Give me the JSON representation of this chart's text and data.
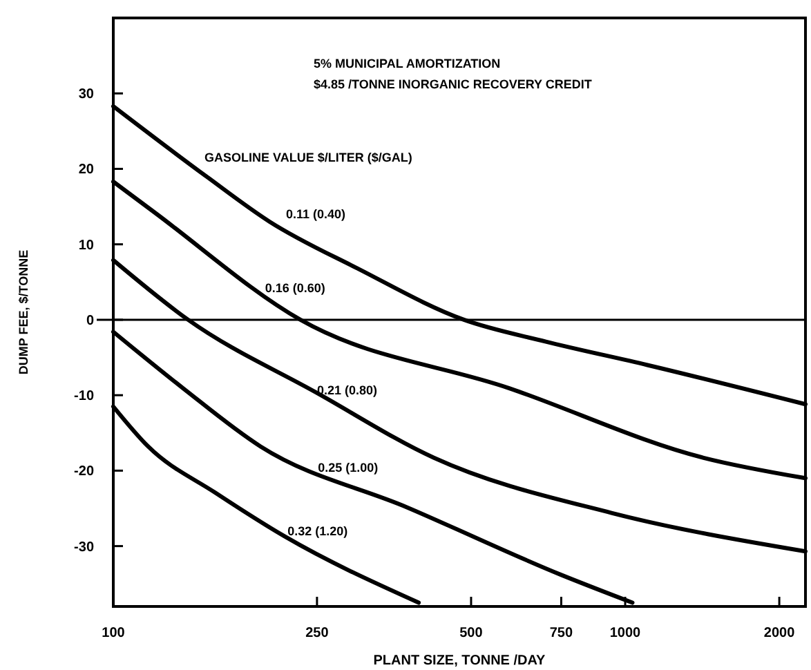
{
  "chart_data": {
    "type": "line",
    "xlabel": "PLANT SIZE, TONNE /DAY",
    "ylabel": "DUMP FEE, $/TONNE",
    "log": "x",
    "xlim": [
      100,
      2250
    ],
    "xticks": [
      100,
      250,
      500,
      750,
      1000,
      2000
    ],
    "ylim": [
      -38,
      40
    ],
    "yticks": [
      -30,
      -20,
      -10,
      0,
      10,
      20,
      30
    ],
    "grid": false,
    "marker": "none",
    "line_style": "solid",
    "series": [
      {
        "color": "#000000",
        "x": [
          100,
          152,
          202,
          300,
          484,
          700,
          1105,
          2250
        ],
        "values": [
          28.3,
          19,
          13,
          6.8,
          0,
          -2.9,
          -6,
          -11.2
        ]
      },
      {
        "color": "#000000",
        "x": [
          100,
          120,
          232,
          595,
          1423,
          2250
        ],
        "values": [
          18.3,
          14.3,
          0,
          -9.1,
          -18.3,
          -21
        ]
      },
      {
        "color": "#000000",
        "x": [
          100,
          140,
          250,
          423,
          940,
          2250
        ],
        "values": [
          7.9,
          0,
          -9.7,
          -18.3,
          -25.6,
          -30.7
        ]
      },
      {
        "color": "#000000",
        "x": [
          100,
          137,
          194,
          376,
          749,
          1033
        ],
        "values": [
          -1.6,
          -9.1,
          -16.8,
          -24.9,
          -33.8,
          -37.5
        ]
      },
      {
        "color": "#000000",
        "x": [
          100,
          117,
          158,
          216,
          395
        ],
        "values": [
          -11.5,
          -16.8,
          -22.9,
          -28.7,
          -37.5
        ]
      }
    ],
    "ref_lines": [
      {
        "axis": "y",
        "value": 0,
        "color": "#000000",
        "line_style": "solid"
      }
    ],
    "annotations": [
      "5% MUNICIPAL AMORTIZATION",
      "$4.85 /TONNE INORGANIC RECOVERY CREDIT",
      "GASOLINE VALUE $/LITER ($/GAL)",
      "0.11 (0.40)",
      {
        "text": "0.16 (0.60)",
        "x": 198,
        "y": 4.2
      },
      {
        "text": "0.21 (0.80)",
        "x": 250,
        "y": -9.3
      },
      {
        "text": "0.25 (1.00)",
        "x": 251,
        "y": -19.6
      },
      {
        "text": "0.32 (1.20)",
        "x": 219,
        "y": -28
      }
    ]
  }
}
